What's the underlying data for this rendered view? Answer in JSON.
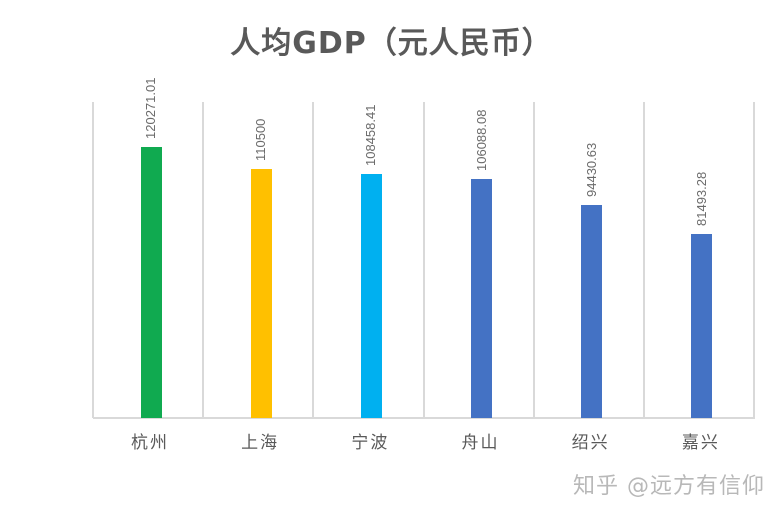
{
  "chart_data": {
    "type": "bar",
    "title": "人均GDP（元人民币）",
    "categories": [
      "杭州",
      "上海",
      "宁波",
      "舟山",
      "绍兴",
      "嘉兴"
    ],
    "values": [
      120271.01,
      110500,
      108458.41,
      106088.08,
      94430.63,
      81493.28
    ],
    "value_labels": [
      "120271.01",
      "110500",
      "108458.41",
      "106088.08",
      "94430.63",
      "81493.28"
    ],
    "colors": [
      "#10AA50",
      "#FFC000",
      "#00B0F0",
      "#4472C4",
      "#4472C4",
      "#4472C4"
    ],
    "xlabel": "",
    "ylabel": "",
    "ylim": [
      0,
      140000
    ],
    "grid": "vertical category separators",
    "legend": "none",
    "data_labels": "rotated vertical above bars"
  },
  "watermark": "知乎 @远方有信仰"
}
